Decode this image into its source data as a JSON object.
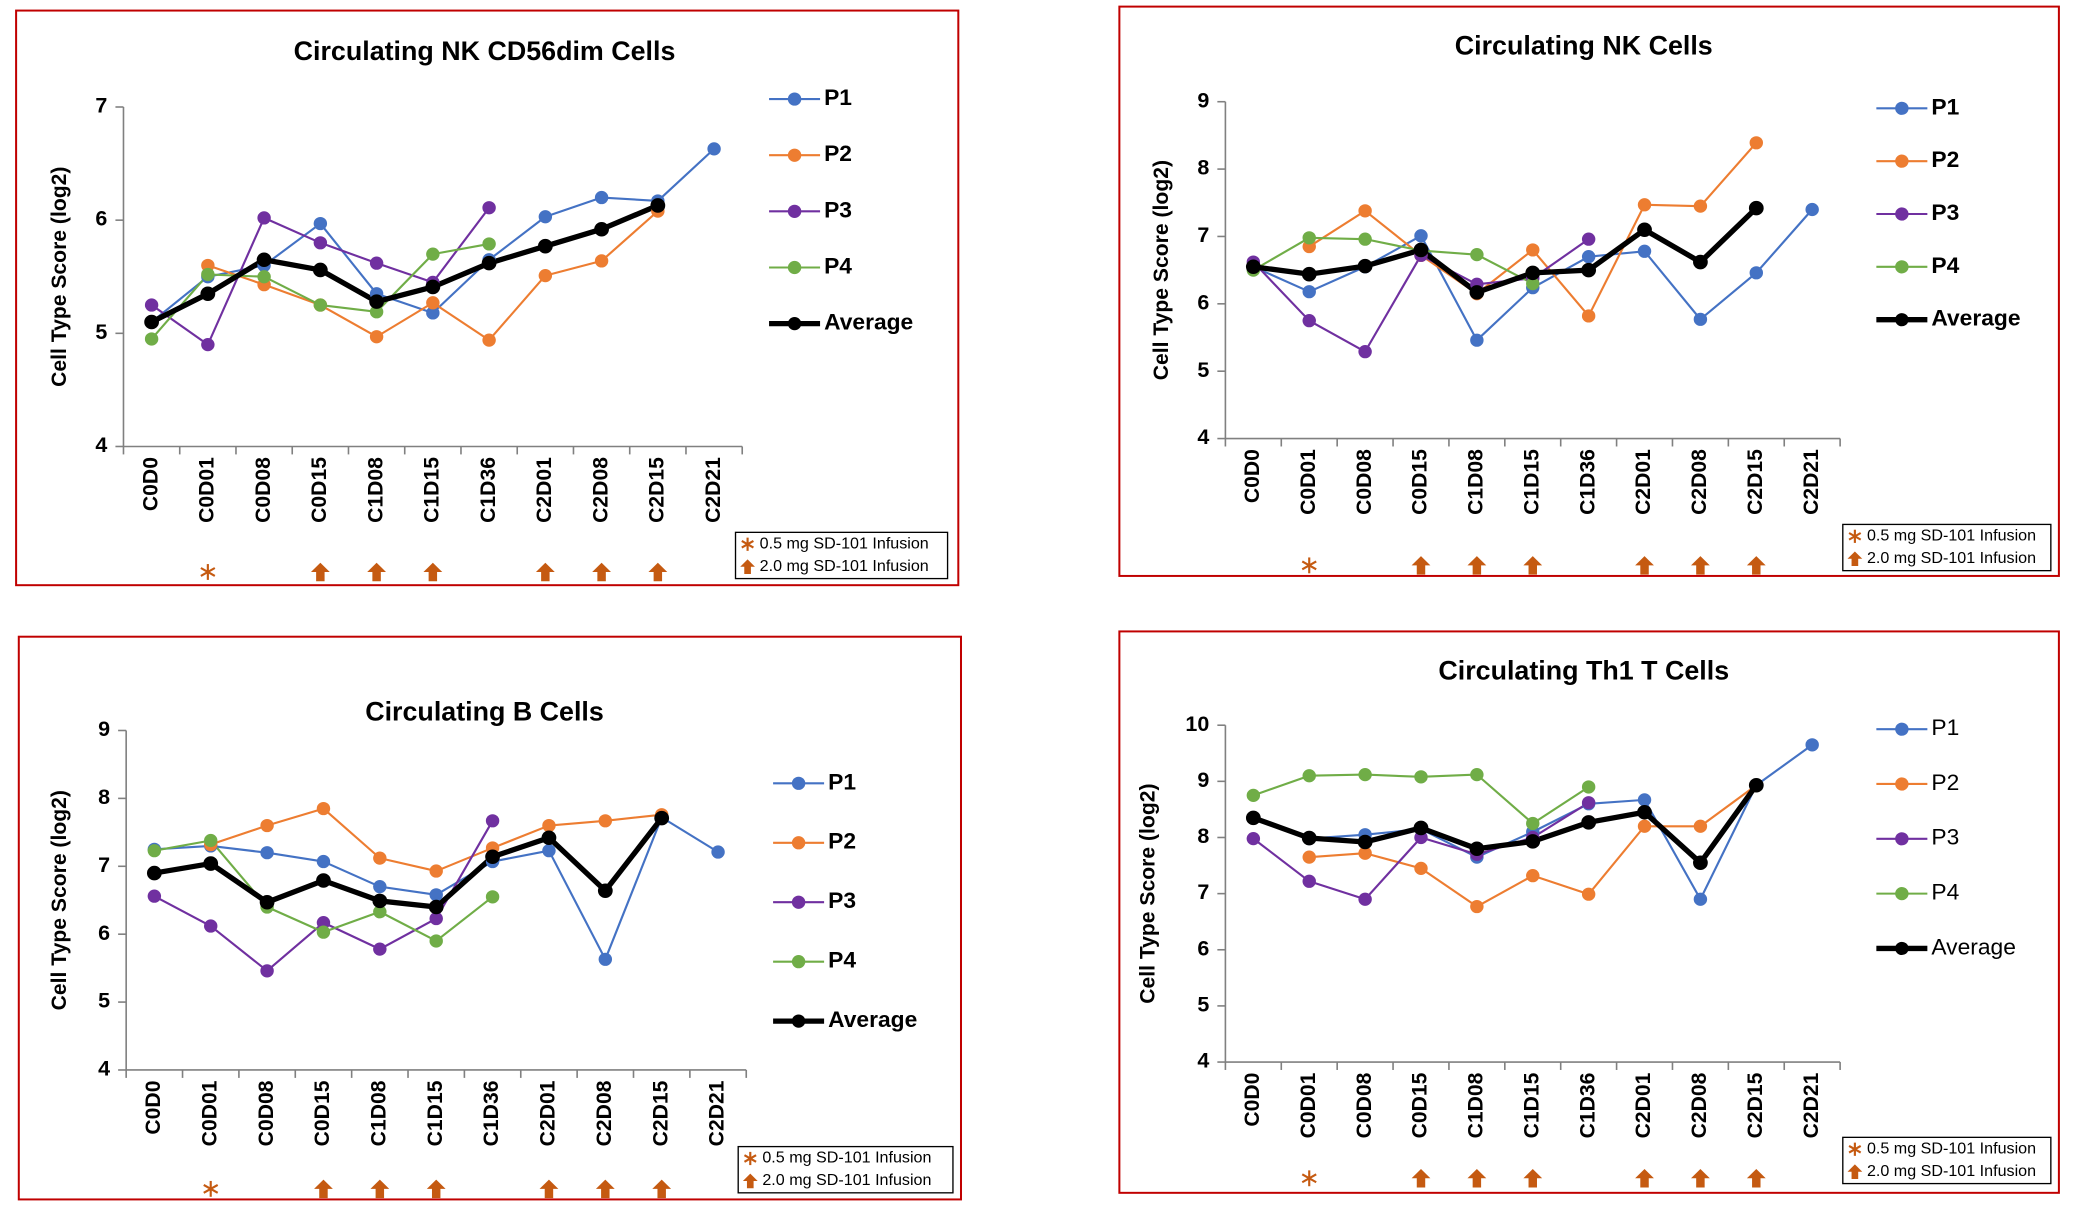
{
  "chart_data": [
    {
      "type": "line",
      "title": "Circulating NK CD56dim Cells",
      "ylabel": "Cell Type Score (log2)",
      "categories": [
        "C0D0",
        "C0D01",
        "C0D08",
        "C0D15",
        "C1D08",
        "C1D15",
        "C1D36",
        "C2D01",
        "C2D08",
        "C2D15",
        "C2D21"
      ],
      "ylim": [
        4,
        7
      ],
      "yticks": [
        4,
        5,
        6,
        7
      ],
      "series": [
        {
          "name": "P1",
          "color": "#4472c4",
          "values": [
            5.1,
            5.5,
            5.6,
            5.97,
            5.35,
            5.18,
            5.65,
            6.03,
            6.2,
            6.17,
            6.63
          ]
        },
        {
          "name": "P2",
          "color": "#ed7d31",
          "values": [
            null,
            5.6,
            5.43,
            5.25,
            4.97,
            5.27,
            4.94,
            5.51,
            5.64,
            6.08,
            null
          ]
        },
        {
          "name": "P3",
          "color": "#7030a0",
          "values": [
            5.25,
            4.9,
            6.02,
            5.8,
            5.62,
            5.45,
            6.11,
            null,
            null,
            null,
            null
          ]
        },
        {
          "name": "P4",
          "color": "#70ad47",
          "values": [
            4.95,
            5.52,
            5.5,
            5.25,
            5.19,
            5.7,
            5.79,
            null,
            null,
            null,
            null
          ]
        },
        {
          "name": "Average",
          "color": "#000000",
          "values": [
            5.1,
            5.35,
            5.65,
            5.56,
            5.28,
            5.41,
            5.62,
            5.77,
            5.92,
            6.13,
            null
          ]
        }
      ],
      "infusion_doses_mg": [
        null,
        0.5,
        null,
        2.0,
        2.0,
        2.0,
        null,
        2.0,
        2.0,
        2.0,
        null
      ],
      "infusion_legend": [
        "0.5 mg SD-101 Infusion",
        "2.0 mg SD-101 Infusion"
      ]
    },
    {
      "type": "line",
      "title": "Circulating NK Cells",
      "ylabel": "Cell Type Score (log2)",
      "categories": [
        "C0D0",
        "C0D01",
        "C0D08",
        "C0D15",
        "C1D08",
        "C1D15",
        "C1D36",
        "C2D01",
        "C2D08",
        "C2D15",
        "C2D21"
      ],
      "ylim": [
        4,
        9
      ],
      "yticks": [
        4,
        5,
        6,
        7,
        8,
        9
      ],
      "series": [
        {
          "name": "P1",
          "color": "#4472c4",
          "values": [
            6.55,
            6.18,
            6.55,
            7.01,
            5.46,
            6.24,
            6.7,
            6.78,
            5.77,
            6.46,
            7.4
          ]
        },
        {
          "name": "P2",
          "color": "#ed7d31",
          "values": [
            null,
            6.85,
            7.38,
            6.72,
            6.15,
            6.8,
            5.82,
            7.47,
            7.45,
            8.39,
            null
          ]
        },
        {
          "name": "P3",
          "color": "#7030a0",
          "values": [
            6.62,
            5.75,
            5.29,
            6.72,
            6.29,
            6.38,
            6.96,
            null,
            null,
            null,
            null
          ]
        },
        {
          "name": "P4",
          "color": "#70ad47",
          "values": [
            6.5,
            6.98,
            6.96,
            6.79,
            6.73,
            6.3,
            null,
            null,
            null,
            null,
            null
          ]
        },
        {
          "name": "Average",
          "color": "#000000",
          "values": [
            6.55,
            6.44,
            6.56,
            6.8,
            6.17,
            6.46,
            6.5,
            7.1,
            6.62,
            7.42,
            null
          ]
        }
      ],
      "infusion_doses_mg": [
        null,
        0.5,
        null,
        2.0,
        2.0,
        2.0,
        null,
        2.0,
        2.0,
        2.0,
        null
      ],
      "infusion_legend": [
        "0.5 mg SD-101 Infusion",
        "2.0 mg SD-101 Infusion"
      ]
    },
    {
      "type": "line",
      "title": "Circulating B Cells",
      "ylabel": "Cell Type Score (log2)",
      "categories": [
        "C0D0",
        "C0D01",
        "C0D08",
        "C0D15",
        "C1D08",
        "C1D15",
        "C1D36",
        "C2D01",
        "C2D08",
        "C2D15",
        "C2D21"
      ],
      "ylim": [
        4,
        9
      ],
      "yticks": [
        4,
        5,
        6,
        7,
        8,
        9
      ],
      "series": [
        {
          "name": "P1",
          "color": "#4472c4",
          "values": [
            7.25,
            7.3,
            7.2,
            7.07,
            6.7,
            6.58,
            7.07,
            7.23,
            5.63,
            7.72,
            7.21
          ]
        },
        {
          "name": "P2",
          "color": "#ed7d31",
          "values": [
            null,
            7.32,
            7.6,
            7.85,
            7.12,
            6.93,
            7.27,
            7.6,
            7.67,
            7.76,
            null
          ]
        },
        {
          "name": "P3",
          "color": "#7030a0",
          "values": [
            6.56,
            6.12,
            5.46,
            6.17,
            5.78,
            6.23,
            7.67,
            null,
            null,
            null,
            null
          ]
        },
        {
          "name": "P4",
          "color": "#70ad47",
          "values": [
            7.23,
            7.38,
            6.4,
            6.03,
            6.33,
            5.9,
            6.55,
            null,
            null,
            null,
            null
          ]
        },
        {
          "name": "Average",
          "color": "#000000",
          "values": [
            6.9,
            7.04,
            6.47,
            6.79,
            6.49,
            6.4,
            7.14,
            7.42,
            6.64,
            7.71,
            null
          ]
        }
      ],
      "infusion_doses_mg": [
        null,
        0.5,
        null,
        2.0,
        2.0,
        2.0,
        null,
        2.0,
        2.0,
        2.0,
        null
      ],
      "infusion_legend": [
        "0.5 mg SD-101 Infusion",
        "2.0 mg SD-101 Infusion"
      ]
    },
    {
      "type": "line",
      "title": "Circulating Th1 T Cells",
      "ylabel": "Cell Type Score (log2)",
      "categories": [
        "C0D0",
        "C0D01",
        "C0D08",
        "C0D15",
        "C1D08",
        "C1D15",
        "C1D36",
        "C2D01",
        "C2D08",
        "C2D15",
        "C2D21"
      ],
      "ylim": [
        4,
        10
      ],
      "yticks": [
        4,
        5,
        6,
        7,
        8,
        9,
        10
      ],
      "series": [
        {
          "name": "P1",
          "color": "#4472c4",
          "values": [
            8.35,
            7.98,
            8.05,
            8.15,
            7.65,
            8.1,
            8.6,
            8.67,
            6.9,
            8.93,
            9.65
          ]
        },
        {
          "name": "P2",
          "color": "#ed7d31",
          "values": [
            null,
            7.65,
            7.72,
            7.45,
            6.77,
            7.32,
            6.99,
            8.2,
            8.2,
            8.93,
            null
          ]
        },
        {
          "name": "P3",
          "color": "#7030a0",
          "values": [
            7.98,
            7.22,
            6.9,
            8.0,
            7.7,
            8.0,
            8.62,
            null,
            null,
            null,
            null
          ]
        },
        {
          "name": "P4",
          "color": "#70ad47",
          "values": [
            8.75,
            9.1,
            9.12,
            9.08,
            9.12,
            8.25,
            8.9,
            null,
            null,
            null,
            null
          ]
        },
        {
          "name": "Average",
          "color": "#000000",
          "values": [
            8.35,
            7.99,
            7.92,
            8.17,
            7.8,
            7.93,
            8.27,
            8.45,
            7.55,
            8.93,
            null
          ]
        }
      ],
      "infusion_doses_mg": [
        null,
        0.5,
        null,
        2.0,
        2.0,
        2.0,
        null,
        2.0,
        2.0,
        2.0,
        null
      ],
      "infusion_legend": [
        "0.5 mg SD-101 Infusion",
        "2.0 mg SD-101 Infusion"
      ]
    }
  ]
}
